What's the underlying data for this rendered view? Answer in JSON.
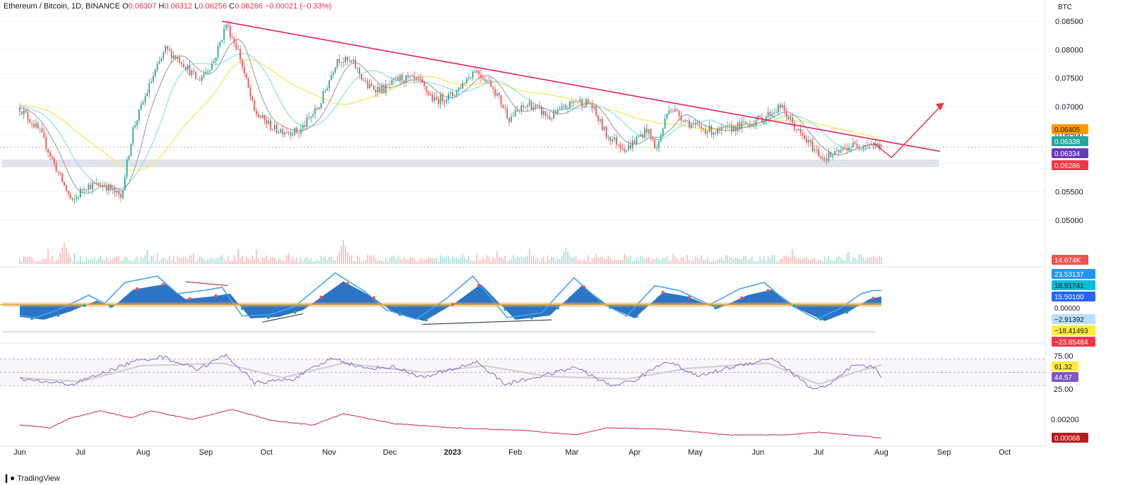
{
  "header": {
    "symbol": "Ethereum / Bitcoin, 1D, BINANCE",
    "o_label": "O",
    "o_value": "0.06307",
    "h_label": "H",
    "h_value": "0.06312",
    "l_label": "L",
    "l_value": "0.06256",
    "c_label": "C",
    "c_value": "0.06286",
    "change": "−0.00021 (−0.33%)"
  },
  "branding": {
    "name": "TradingView",
    "icon": "tradingview-logo-icon"
  },
  "colors": {
    "up": "#26a69a",
    "down": "#ef5350",
    "trendline": "#e91e63",
    "arrow": "#f23645",
    "ma_yellow": "#f5e663",
    "ma_cyan": "#80deea",
    "ma_gray": "#9e9e9e",
    "support": "#e0e3eb",
    "wave_blue": "#1565c0",
    "wave_line": "#42a5f5",
    "rsi": "#7e57c2",
    "rsi_ma": "#cfcfcf"
  },
  "chart_data": [
    {
      "type": "candlestick",
      "pane": "price",
      "currency": "BTC",
      "ylim": [
        0.0455,
        0.0865
      ],
      "y_ticks": [
        "0.08500",
        "0.08000",
        "0.07500",
        "0.07000",
        "0.06500",
        "0.06000",
        "0.05500",
        "0.05000"
      ],
      "y_tick_values": [
        0.085,
        0.08,
        0.075,
        0.07,
        0.065,
        0.06,
        0.055,
        0.05
      ],
      "x_labels": [
        "Jun",
        "Jul",
        "Aug",
        "Sep",
        "Oct",
        "Nov",
        "Dec",
        "2023",
        "Feb",
        "Mar",
        "Apr",
        "May",
        "Jun",
        "Jul",
        "Aug",
        "Sep",
        "Oct"
      ],
      "x_label_days": [
        0,
        30,
        61,
        92,
        122,
        153,
        183,
        214,
        245,
        273,
        304,
        334,
        365,
        395,
        426,
        457,
        487
      ],
      "last_candle_day": 426,
      "close_path": [
        {
          "d": 0,
          "v": 0.0698
        },
        {
          "d": 10,
          "v": 0.0655
        },
        {
          "d": 20,
          "v": 0.0575
        },
        {
          "d": 26,
          "v": 0.053
        },
        {
          "d": 32,
          "v": 0.056
        },
        {
          "d": 42,
          "v": 0.0562
        },
        {
          "d": 50,
          "v": 0.054
        },
        {
          "d": 56,
          "v": 0.066
        },
        {
          "d": 65,
          "v": 0.0745
        },
        {
          "d": 72,
          "v": 0.08
        },
        {
          "d": 80,
          "v": 0.078
        },
        {
          "d": 88,
          "v": 0.0745
        },
        {
          "d": 96,
          "v": 0.078
        },
        {
          "d": 102,
          "v": 0.0845
        },
        {
          "d": 108,
          "v": 0.0798
        },
        {
          "d": 116,
          "v": 0.069
        },
        {
          "d": 126,
          "v": 0.066
        },
        {
          "d": 138,
          "v": 0.0655
        },
        {
          "d": 148,
          "v": 0.07
        },
        {
          "d": 157,
          "v": 0.0785
        },
        {
          "d": 165,
          "v": 0.0775
        },
        {
          "d": 172,
          "v": 0.0735
        },
        {
          "d": 180,
          "v": 0.073
        },
        {
          "d": 188,
          "v": 0.075
        },
        {
          "d": 197,
          "v": 0.0745
        },
        {
          "d": 205,
          "v": 0.071
        },
        {
          "d": 214,
          "v": 0.072
        },
        {
          "d": 225,
          "v": 0.0765
        },
        {
          "d": 233,
          "v": 0.074
        },
        {
          "d": 242,
          "v": 0.068
        },
        {
          "d": 252,
          "v": 0.0705
        },
        {
          "d": 262,
          "v": 0.068
        },
        {
          "d": 275,
          "v": 0.071
        },
        {
          "d": 282,
          "v": 0.0705
        },
        {
          "d": 290,
          "v": 0.065
        },
        {
          "d": 300,
          "v": 0.0625
        },
        {
          "d": 310,
          "v": 0.066
        },
        {
          "d": 315,
          "v": 0.0625
        },
        {
          "d": 321,
          "v": 0.07
        },
        {
          "d": 333,
          "v": 0.0665
        },
        {
          "d": 345,
          "v": 0.0655
        },
        {
          "d": 360,
          "v": 0.067
        },
        {
          "d": 368,
          "v": 0.068
        },
        {
          "d": 376,
          "v": 0.07
        },
        {
          "d": 386,
          "v": 0.065
        },
        {
          "d": 397,
          "v": 0.061
        },
        {
          "d": 403,
          "v": 0.0615
        },
        {
          "d": 410,
          "v": 0.063
        },
        {
          "d": 420,
          "v": 0.0635
        },
        {
          "d": 426,
          "v": 0.06286
        }
      ],
      "trendline": [
        {
          "d": 100,
          "v": 0.085
        },
        {
          "d": 455,
          "v": 0.0621
        }
      ],
      "support_zone": [
        0.0594,
        0.0606
      ],
      "forecast_arrow": [
        {
          "d": 422,
          "v": 0.0636
        },
        {
          "d": 431,
          "v": 0.061
        },
        {
          "d": 456,
          "v": 0.0703
        }
      ],
      "ma_labels": [
        "0.06405",
        "0.06338",
        "0.06334",
        "0.06286"
      ],
      "ma_label_colors": [
        "#ff9800",
        "#26a69a",
        "#673ab7",
        "#f23645"
      ]
    },
    {
      "type": "bar",
      "pane": "volume",
      "last_value_label": "14.674K",
      "max_volume": 35,
      "spikes": [
        {
          "d": 22,
          "v": 32
        },
        {
          "d": 160,
          "v": 35
        },
        {
          "d": 270,
          "v": 24
        }
      ]
    },
    {
      "type": "area",
      "pane": "wave_oscillator",
      "ylim": [
        -45,
        45
      ],
      "labels": [
        "23.53137",
        "18.91741",
        "15.50100",
        "0.00000",
        "−2.91392",
        "−18.41493",
        "−23.85484"
      ],
      "label_colors": [
        "#2196f3",
        "#00bcd4",
        "#2962ff",
        "#ffffff",
        "#bbdefb",
        "#ffeb3b",
        "#f23645"
      ],
      "label_text_colors": [
        "#ffffff",
        "#131722",
        "#ffffff",
        "#131722",
        "#131722",
        "#131722",
        "#ffffff"
      ],
      "wave": [
        {
          "d": 0,
          "v": -18
        },
        {
          "d": 12,
          "v": -22
        },
        {
          "d": 25,
          "v": -10
        },
        {
          "d": 38,
          "v": 6
        },
        {
          "d": 46,
          "v": -4
        },
        {
          "d": 56,
          "v": 22
        },
        {
          "d": 72,
          "v": 30
        },
        {
          "d": 82,
          "v": 8
        },
        {
          "d": 95,
          "v": 12
        },
        {
          "d": 104,
          "v": 16
        },
        {
          "d": 114,
          "v": -20
        },
        {
          "d": 128,
          "v": -18
        },
        {
          "d": 140,
          "v": -8
        },
        {
          "d": 160,
          "v": 34
        },
        {
          "d": 175,
          "v": 10
        },
        {
          "d": 185,
          "v": -12
        },
        {
          "d": 200,
          "v": -24
        },
        {
          "d": 215,
          "v": 2
        },
        {
          "d": 228,
          "v": 30
        },
        {
          "d": 245,
          "v": -22
        },
        {
          "d": 262,
          "v": -16
        },
        {
          "d": 278,
          "v": 28
        },
        {
          "d": 292,
          "v": -4
        },
        {
          "d": 304,
          "v": -20
        },
        {
          "d": 318,
          "v": 18
        },
        {
          "d": 330,
          "v": 12
        },
        {
          "d": 345,
          "v": -6
        },
        {
          "d": 360,
          "v": 14
        },
        {
          "d": 372,
          "v": 22
        },
        {
          "d": 385,
          "v": -6
        },
        {
          "d": 398,
          "v": -24
        },
        {
          "d": 410,
          "v": -10
        },
        {
          "d": 420,
          "v": 8
        },
        {
          "d": 426,
          "v": 12
        }
      ],
      "divergence_lines": [
        [
          {
            "d": 82,
            "v": 30
          },
          {
            "d": 103,
            "v": 25
          }
        ],
        [
          {
            "d": 120,
            "v": -23
          },
          {
            "d": 140,
            "v": -12
          }
        ],
        [
          {
            "d": 199,
            "v": -26
          },
          {
            "d": 263,
            "v": -20
          }
        ]
      ]
    },
    {
      "type": "line",
      "pane": "rsi",
      "ylim": [
        10,
        90
      ],
      "y_ticks": [
        "75.00",
        "25.00"
      ],
      "y_tick_values": [
        75,
        25
      ],
      "levels": [
        70,
        50,
        30
      ],
      "labels": [
        "61.32",
        "44.57"
      ],
      "label_colors": [
        "#ffeb3b",
        "#7e57c2"
      ],
      "rsi": [
        {
          "d": 0,
          "v": 40
        },
        {
          "d": 14,
          "v": 35
        },
        {
          "d": 26,
          "v": 32
        },
        {
          "d": 40,
          "v": 48
        },
        {
          "d": 56,
          "v": 66
        },
        {
          "d": 70,
          "v": 74
        },
        {
          "d": 88,
          "v": 55
        },
        {
          "d": 102,
          "v": 76
        },
        {
          "d": 116,
          "v": 34
        },
        {
          "d": 135,
          "v": 40
        },
        {
          "d": 155,
          "v": 72
        },
        {
          "d": 170,
          "v": 56
        },
        {
          "d": 185,
          "v": 58
        },
        {
          "d": 200,
          "v": 42
        },
        {
          "d": 213,
          "v": 54
        },
        {
          "d": 226,
          "v": 66
        },
        {
          "d": 240,
          "v": 32
        },
        {
          "d": 260,
          "v": 46
        },
        {
          "d": 275,
          "v": 58
        },
        {
          "d": 292,
          "v": 30
        },
        {
          "d": 304,
          "v": 38
        },
        {
          "d": 320,
          "v": 68
        },
        {
          "d": 335,
          "v": 44
        },
        {
          "d": 352,
          "v": 58
        },
        {
          "d": 372,
          "v": 72
        },
        {
          "d": 392,
          "v": 25
        },
        {
          "d": 400,
          "v": 30
        },
        {
          "d": 412,
          "v": 60
        },
        {
          "d": 422,
          "v": 58
        },
        {
          "d": 426,
          "v": 44.57
        }
      ],
      "rsi_ma": [
        {
          "d": 0,
          "v": 42
        },
        {
          "d": 30,
          "v": 36
        },
        {
          "d": 60,
          "v": 60
        },
        {
          "d": 100,
          "v": 64
        },
        {
          "d": 130,
          "v": 42
        },
        {
          "d": 160,
          "v": 64
        },
        {
          "d": 200,
          "v": 50
        },
        {
          "d": 230,
          "v": 60
        },
        {
          "d": 260,
          "v": 44
        },
        {
          "d": 300,
          "v": 40
        },
        {
          "d": 330,
          "v": 56
        },
        {
          "d": 370,
          "v": 64
        },
        {
          "d": 395,
          "v": 32
        },
        {
          "d": 415,
          "v": 52
        },
        {
          "d": 426,
          "v": 61.32
        }
      ]
    },
    {
      "type": "line",
      "pane": "bottom_indicator",
      "ylim": [
        0.0003,
        0.0032
      ],
      "y_ticks": [
        "0.00200"
      ],
      "y_tick_values": [
        0.002
      ],
      "label": "0.00068",
      "label_color": "#b71c1c",
      "values": [
        {
          "d": 0,
          "v": 0.0016
        },
        {
          "d": 15,
          "v": 0.0014
        },
        {
          "d": 25,
          "v": 0.0021
        },
        {
          "d": 40,
          "v": 0.0026
        },
        {
          "d": 55,
          "v": 0.0021
        },
        {
          "d": 65,
          "v": 0.0026
        },
        {
          "d": 85,
          "v": 0.002
        },
        {
          "d": 105,
          "v": 0.0027
        },
        {
          "d": 125,
          "v": 0.0019
        },
        {
          "d": 145,
          "v": 0.0016
        },
        {
          "d": 160,
          "v": 0.0024
        },
        {
          "d": 185,
          "v": 0.0017
        },
        {
          "d": 214,
          "v": 0.0014
        },
        {
          "d": 250,
          "v": 0.0012
        },
        {
          "d": 275,
          "v": 0.0009
        },
        {
          "d": 290,
          "v": 0.0014
        },
        {
          "d": 320,
          "v": 0.0013
        },
        {
          "d": 350,
          "v": 0.0009
        },
        {
          "d": 380,
          "v": 0.0009
        },
        {
          "d": 395,
          "v": 0.0011
        },
        {
          "d": 426,
          "v": 0.00068
        }
      ]
    }
  ]
}
